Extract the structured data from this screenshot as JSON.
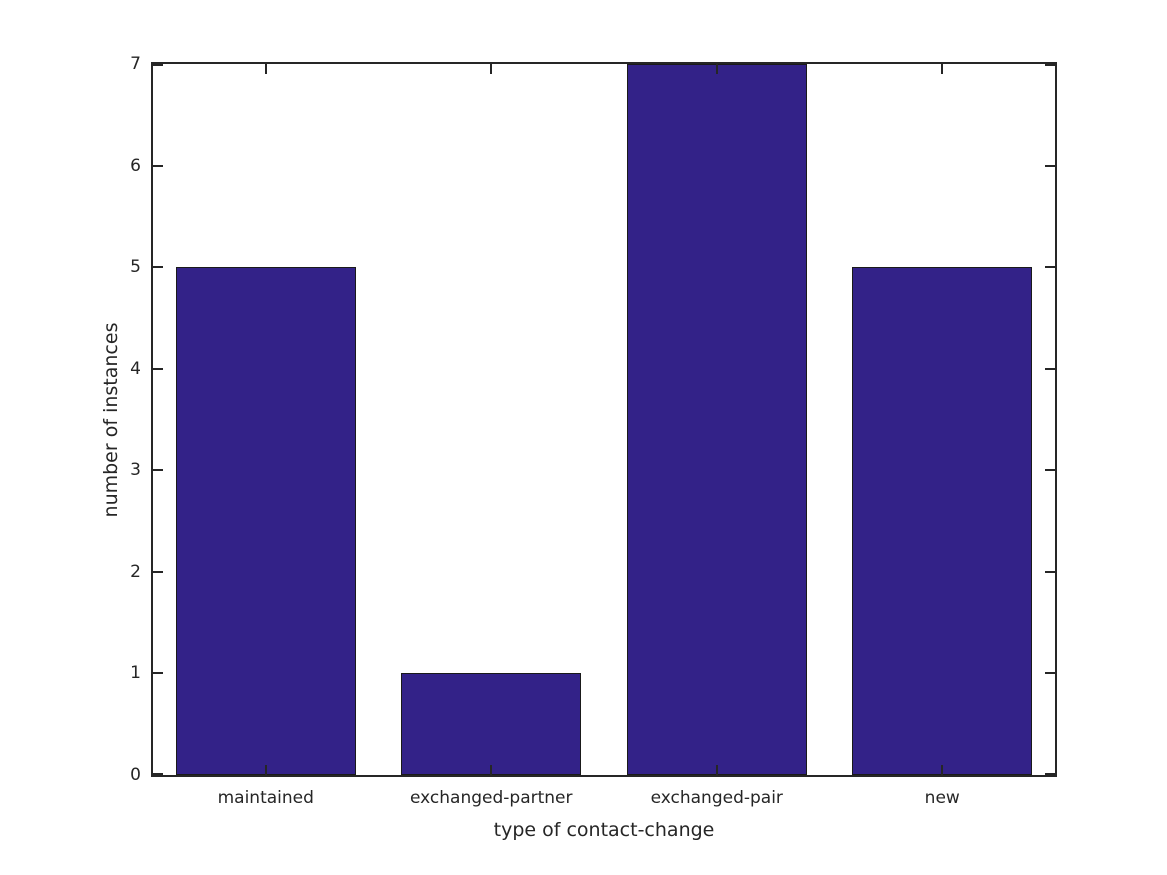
{
  "chart_data": {
    "type": "bar",
    "title": "",
    "categories": [
      "maintained",
      "exchanged-partner",
      "exchanged-pair",
      "new"
    ],
    "values": [
      5,
      1,
      7,
      5
    ],
    "xlabel": "type of contact-change",
    "ylabel": "number of instances",
    "ylim": [
      0,
      7
    ],
    "yticks": [
      0,
      1,
      2,
      3,
      4,
      5,
      6,
      7
    ],
    "bar_width_fraction": 0.8,
    "grid": false,
    "legend": false,
    "colors": {
      "bar_fill": "#332288",
      "bar_edge": "#1a1a1a",
      "axis": "#262626",
      "text": "#262626",
      "background": "#ffffff"
    }
  }
}
